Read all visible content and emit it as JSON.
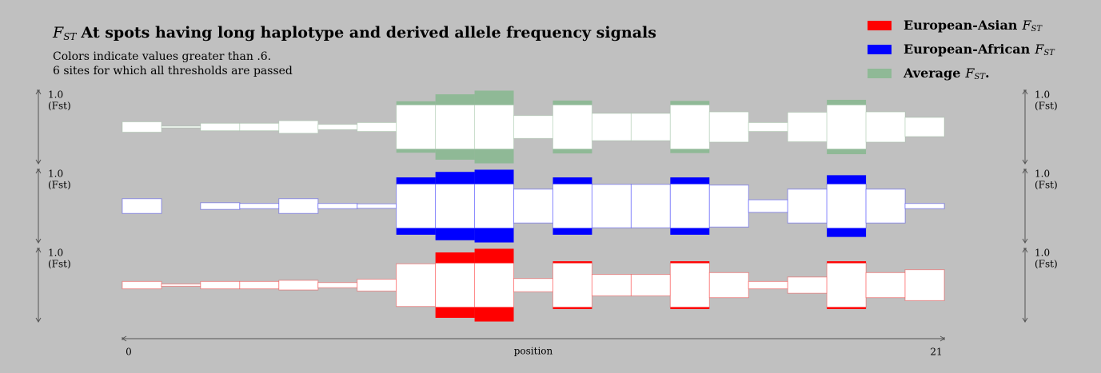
{
  "chart_data": {
    "type": "band-track",
    "title_symbol": "F",
    "title_symbol_sub": "ST",
    "title": "At spots having long haplotype and derived allele frequency signals",
    "subtitle": [
      "Colors indicate values greater than .6.",
      "6 sites for which all thresholds are passed"
    ],
    "threshold": 0.6,
    "legend_symbol": "F",
    "legend_symbol_sub": "ST",
    "series": [
      {
        "name": "European-Asian",
        "color": "#ff0000",
        "values": [
          0.1,
          0.03,
          0.1,
          0.1,
          0.13,
          0.07,
          0.16,
          0.58,
          0.89,
          0.99,
          0.18,
          0.65,
          0.29,
          0.29,
          0.65,
          0.34,
          0.1,
          0.22,
          0.65,
          0.34,
          0.42
        ]
      },
      {
        "name": "European-African",
        "color": "#0000ff",
        "values": [
          0.2,
          0,
          0.09,
          0.07,
          0.2,
          0.07,
          0.06,
          0.78,
          0.93,
          0.99,
          0.46,
          0.78,
          0.59,
          0.59,
          0.78,
          0.57,
          0.17,
          0.46,
          0.84,
          0.46,
          0.07
        ]
      },
      {
        "name": "Average",
        "name_suffix": ".",
        "color": "#8fb996",
        "values": [
          0.14,
          0.02,
          0.1,
          0.1,
          0.17,
          0.07,
          0.12,
          0.7,
          0.89,
          0.99,
          0.31,
          0.72,
          0.37,
          0.37,
          0.71,
          0.41,
          0.12,
          0.4,
          0.74,
          0.41,
          0.26
        ]
      }
    ],
    "ylim": [
      0,
      1
    ],
    "yticks": [
      {
        "value": 1,
        "label": "1.0"
      }
    ],
    "ylabel": "(Fst)",
    "xlim": [
      0,
      21
    ],
    "xticks": [
      0,
      21
    ],
    "xlabel": "position"
  }
}
